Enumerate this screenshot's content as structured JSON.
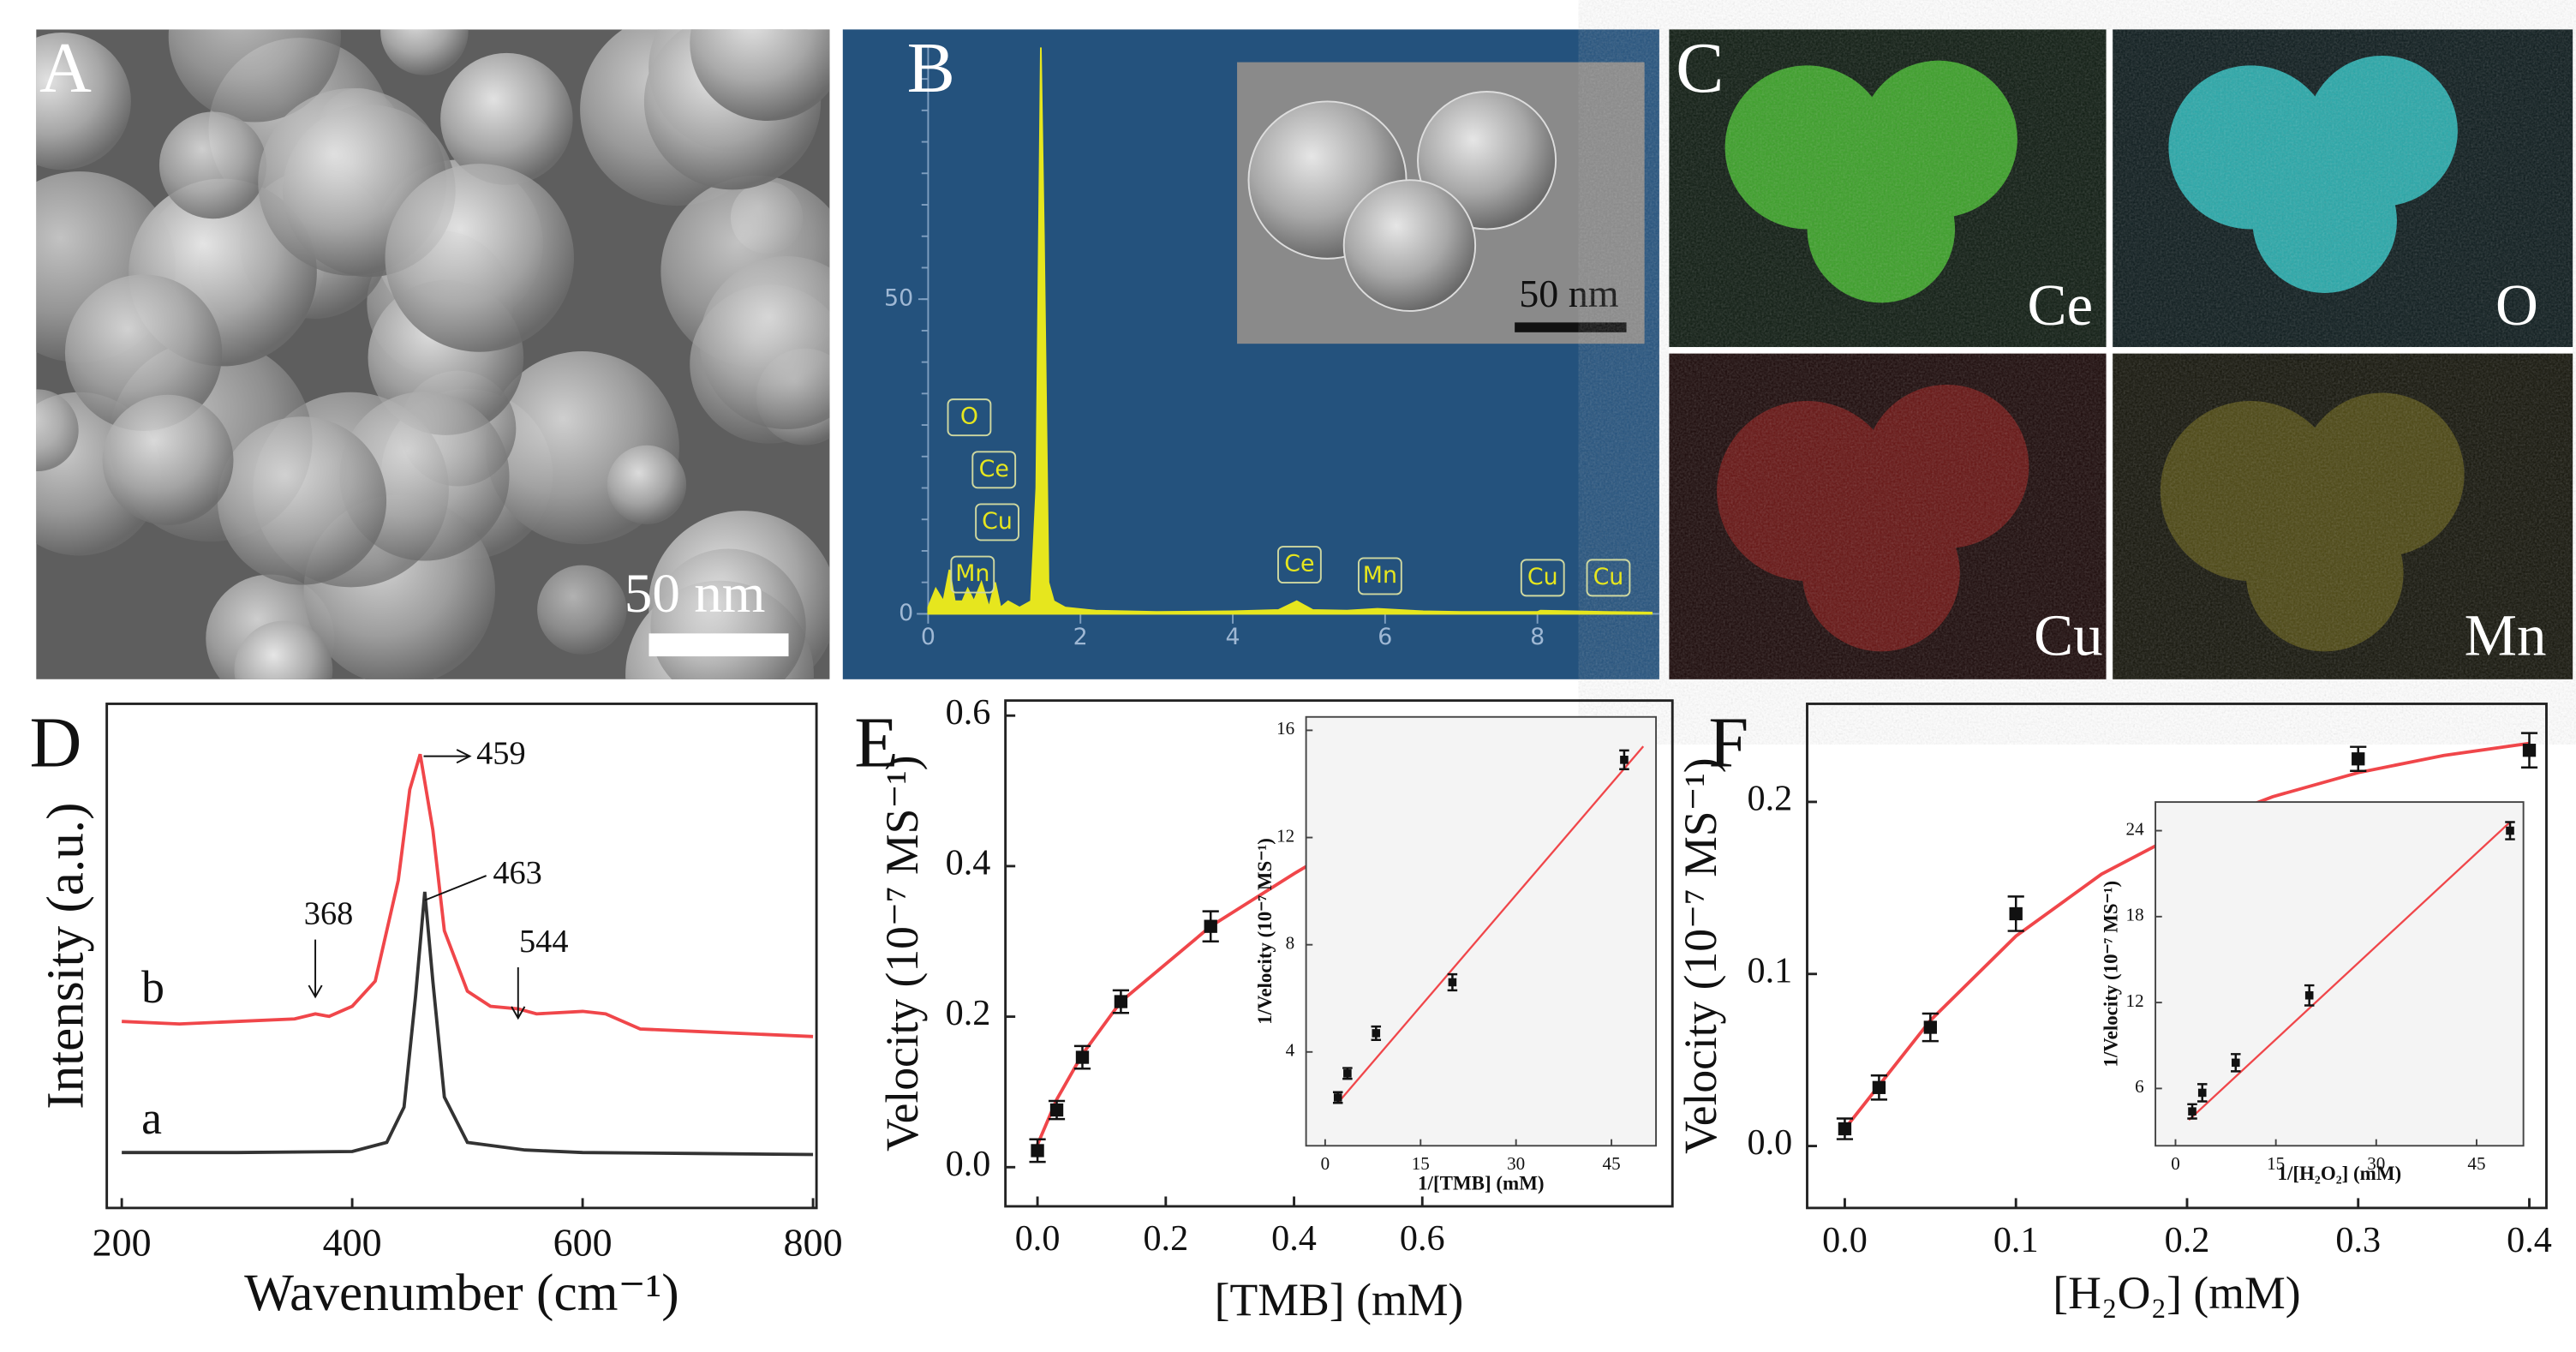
{
  "figure": {
    "panel_labels": [
      "A",
      "B",
      "C",
      "D",
      "E",
      "F"
    ],
    "scale_bars": [
      "50 nm",
      "50 nm"
    ],
    "map_labels": [
      "Ce",
      "O",
      "Cu",
      "Mn"
    ]
  },
  "chart_data": [
    {
      "type": "spectrum",
      "xlim": [
        -0.15,
        9.6
      ],
      "ylim": [
        0,
        90
      ],
      "xticks": [
        0,
        2,
        4,
        6,
        8
      ],
      "yticks": [
        0,
        50
      ],
      "peak_labels": [
        "O",
        "Ce",
        "Cu",
        "Mn",
        "Ce",
        "Mn",
        "Cu",
        "Cu"
      ],
      "series": [
        {
          "kind": "area",
          "color": "#e6e61e",
          "x": [
            0,
            0.1,
            0.2,
            0.28,
            0.35,
            0.45,
            0.52,
            0.6,
            0.7,
            0.8,
            0.88,
            0.95,
            1.05,
            1.2,
            1.35,
            1.42,
            1.48,
            1.52,
            1.58,
            1.65,
            1.8,
            2.2,
            3,
            4,
            4.6,
            4.84,
            5.05,
            5.5,
            5.9,
            6.5,
            7,
            8,
            8.04,
            8.9,
            9.5
          ],
          "values": [
            1,
            4,
            2,
            7,
            2,
            2,
            4,
            2,
            5,
            1,
            5,
            1,
            2,
            1,
            2,
            20,
            90,
            60,
            5,
            2,
            1,
            0.5,
            0.3,
            0.4,
            0.6,
            2,
            0.6,
            0.5,
            0.8,
            0.4,
            0.3,
            0.3,
            0.5,
            0.3,
            0.2
          ]
        }
      ]
    },
    {
      "type": "line",
      "xlim": [
        187,
        803
      ],
      "ylim": [
        0,
        10
      ],
      "xticks": [
        200,
        400,
        600,
        800
      ],
      "x_label": "Wavenumber (cm⁻¹)",
      "y_label": "Intensity (a.u.)",
      "annotations": [
        "368",
        "459",
        "463",
        "544"
      ],
      "series": [
        {
          "name": "b",
          "kind": "line",
          "color": "#f0464a",
          "x": [
            200,
            250,
            300,
            350,
            368,
            380,
            400,
            420,
            440,
            450,
            459,
            470,
            480,
            500,
            520,
            544,
            560,
            600,
            620,
            650,
            700,
            750,
            800
          ],
          "values": [
            3.7,
            3.65,
            3.7,
            3.75,
            3.85,
            3.8,
            4.0,
            4.5,
            6.5,
            8.3,
            9.0,
            7.5,
            5.5,
            4.3,
            4.0,
            3.95,
            3.85,
            3.9,
            3.85,
            3.55,
            3.5,
            3.45,
            3.4
          ]
        },
        {
          "name": "a",
          "kind": "line",
          "color": "#333333",
          "x": [
            200,
            300,
            400,
            430,
            445,
            455,
            463,
            470,
            480,
            500,
            550,
            600,
            700,
            800
          ],
          "values": [
            1.1,
            1.1,
            1.12,
            1.3,
            2.0,
            4.2,
            6.27,
            4.5,
            2.2,
            1.3,
            1.15,
            1.1,
            1.08,
            1.06
          ]
        }
      ]
    },
    {
      "type": "scatter",
      "xlim": [
        -0.05,
        0.99
      ],
      "ylim": [
        -0.052,
        0.62
      ],
      "xticks": [
        {
          "value": 0,
          "label": "0.0"
        },
        0.2,
        0.4,
        0.6
      ],
      "yticks": [
        {
          "value": 0,
          "label": "0.0"
        },
        0.2,
        0.4,
        0.6
      ],
      "x_label": "[TMB] (mM)",
      "y_label": "Velocity (10⁻⁷ MS⁻¹)",
      "series": [
        {
          "kind": "line",
          "color": "#f0464a",
          "x": [
            0,
            0.03,
            0.07,
            0.13,
            0.27,
            0.4,
            0.5,
            0.65,
            0.75,
            0.85
          ],
          "values": [
            0.03,
            0.09,
            0.15,
            0.22,
            0.32,
            0.39,
            0.44,
            0.49,
            0.515,
            0.535
          ]
        },
        {
          "kind": "points",
          "color": "#111111",
          "x": [
            0,
            0.03,
            0.07,
            0.13,
            0.27,
            0.65,
            0.85
          ],
          "values": [
            0.022,
            0.076,
            0.146,
            0.22,
            0.32,
            0.487,
            0.528
          ],
          "errors": [
            0.015,
            0.012,
            0.015,
            0.015,
            0.02,
            0.018,
            0.022
          ]
        }
      ]
    },
    {
      "type": "scatter",
      "xlim": [
        -3,
        52
      ],
      "ylim": [
        0.5,
        16.5
      ],
      "xticks": [
        0,
        15,
        30,
        45
      ],
      "yticks": [
        4,
        8,
        12,
        16
      ],
      "x_label": "1/[TMB] (mM)",
      "y_label": "1/Velocity (10⁻⁷ MS⁻¹)",
      "series": [
        {
          "kind": "line",
          "color": "#f0464a",
          "x": [
            2,
            50
          ],
          "values": [
            2.1,
            15.4
          ]
        },
        {
          "kind": "points",
          "color": "#111111",
          "x": [
            2,
            3.5,
            8,
            20,
            47
          ],
          "values": [
            2.3,
            3.2,
            4.7,
            6.6,
            14.9
          ],
          "errors": [
            0.2,
            0.2,
            0.25,
            0.3,
            0.35
          ]
        }
      ]
    },
    {
      "type": "scatter",
      "xlim": [
        -0.022,
        0.41
      ],
      "ylim": [
        -0.036,
        0.257
      ],
      "xticks": [
        {
          "value": 0,
          "label": "0.0"
        },
        0.1,
        0.2,
        0.3,
        0.4
      ],
      "yticks": [
        {
          "value": 0,
          "label": "0.0"
        },
        0.1,
        0.2
      ],
      "x_label": "[H₂O₂] (mM)",
      "y_label": "Velocity (10⁻⁷ MS⁻¹)",
      "series": [
        {
          "kind": "line",
          "color": "#f0464a",
          "x": [
            0,
            0.05,
            0.1,
            0.15,
            0.2,
            0.25,
            0.3,
            0.35,
            0.4
          ],
          "values": [
            0.01,
            0.073,
            0.122,
            0.158,
            0.184,
            0.203,
            0.217,
            0.227,
            0.234
          ]
        },
        {
          "kind": "points",
          "color": "#111111",
          "x": [
            0,
            0.02,
            0.05,
            0.1,
            0.2,
            0.3,
            0.4
          ],
          "values": [
            0.01,
            0.034,
            0.069,
            0.135,
            0.18,
            0.225,
            0.23
          ],
          "errors": [
            0.006,
            0.007,
            0.008,
            0.01,
            0.007,
            0.007,
            0.01
          ]
        }
      ]
    },
    {
      "type": "scatter",
      "xlim": [
        -3,
        52
      ],
      "ylim": [
        2,
        26
      ],
      "xticks": [
        0,
        15,
        30,
        45
      ],
      "yticks": [
        6,
        12,
        18,
        24
      ],
      "x_label": "1/[H₂O₂] (mM)",
      "y_label": "1/Velocity (10⁻⁷ MS⁻¹)",
      "series": [
        {
          "kind": "line",
          "color": "#f0464a",
          "x": [
            2,
            50
          ],
          "values": [
            3.8,
            24.6
          ]
        },
        {
          "kind": "points",
          "color": "#111111",
          "x": [
            2.5,
            4,
            9,
            20,
            50
          ],
          "values": [
            4.4,
            5.7,
            7.8,
            12.5,
            24
          ],
          "errors": [
            0.5,
            0.6,
            0.6,
            0.7,
            0.6
          ]
        }
      ]
    }
  ]
}
